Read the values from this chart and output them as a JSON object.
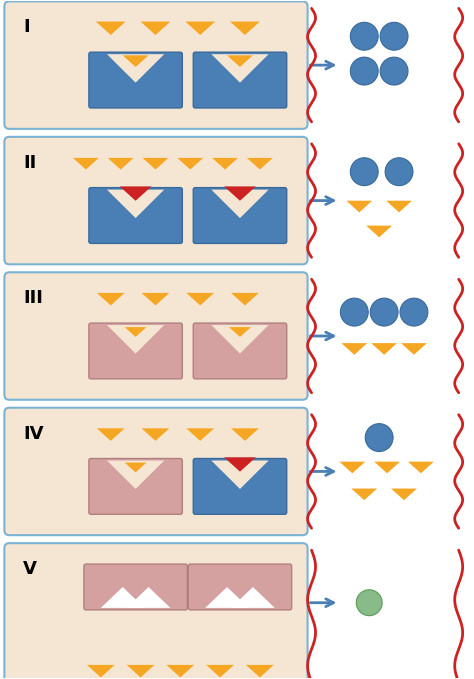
{
  "fig_width": 4.74,
  "fig_height": 6.79,
  "bg_color": "#ffffff",
  "panel_bg": "#f5e6d3",
  "panel_border": "#7ab3d4",
  "blue_receptor": "#4a7fb5",
  "pink_receptor": "#d4a0a0",
  "orange_triangle": "#f5a623",
  "red_triangle": "#cc2222",
  "blue_dot": "#4a7fb5",
  "green_dot": "#88bb88",
  "wavy_line": "#cc2222",
  "arrow_color": "#4a7fb5",
  "row_labels": [
    "I",
    "II",
    "III",
    "IV",
    "V"
  ]
}
